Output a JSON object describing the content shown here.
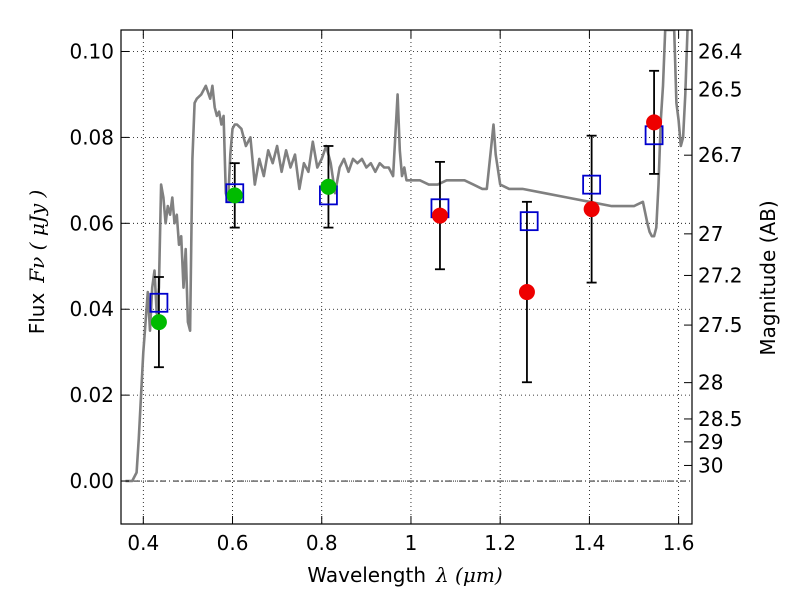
{
  "chart_data": {
    "type": "scatter",
    "title": "",
    "xlabel": "Wavelength",
    "xlabel_math": "λ (μm)",
    "ylabel": "Flux",
    "ylabel_math": "Fν ( μJy )",
    "ylabel_right": "Magnitude (AB)",
    "xlim": [
      0.35,
      1.63
    ],
    "ylim": [
      -0.01,
      0.105
    ],
    "grid": true,
    "x_ticks": [
      0.4,
      0.6,
      0.8,
      1.0,
      1.2,
      1.4,
      1.6
    ],
    "x_tick_labels": [
      "0.4",
      "0.6",
      "0.8",
      "1",
      "1.2",
      "1.4",
      "1.6"
    ],
    "y_ticks": [
      0.0,
      0.02,
      0.04,
      0.06,
      0.08,
      0.1
    ],
    "y_tick_labels": [
      "0.00",
      "0.02",
      "0.04",
      "0.06",
      "0.08",
      "0.10"
    ],
    "mag_ticks": [
      "26.4",
      "26.5",
      "26.7",
      "27",
      "27.2",
      "27.5",
      "28",
      "28.5",
      "29",
      "30"
    ],
    "series": [
      {
        "kind": "line",
        "color": "#808080",
        "x": [
          0.36,
          0.375,
          0.385,
          0.39,
          0.4,
          0.41,
          0.415,
          0.42,
          0.425,
          0.43,
          0.435,
          0.44,
          0.445,
          0.45,
          0.455,
          0.46,
          0.465,
          0.47,
          0.475,
          0.48,
          0.485,
          0.49,
          0.495,
          0.5,
          0.505,
          0.51,
          0.515,
          0.52,
          0.53,
          0.54,
          0.55,
          0.555,
          0.56,
          0.565,
          0.57,
          0.575,
          0.58,
          0.585,
          0.59,
          0.595,
          0.6,
          0.605,
          0.61,
          0.62,
          0.63,
          0.64,
          0.65,
          0.66,
          0.67,
          0.68,
          0.69,
          0.7,
          0.71,
          0.72,
          0.73,
          0.74,
          0.75,
          0.76,
          0.77,
          0.78,
          0.79,
          0.8,
          0.81,
          0.82,
          0.83,
          0.84,
          0.85,
          0.86,
          0.87,
          0.88,
          0.89,
          0.9,
          0.91,
          0.92,
          0.93,
          0.94,
          0.95,
          0.96,
          0.97,
          0.975,
          0.98,
          0.985,
          0.99,
          1.0,
          1.02,
          1.04,
          1.06,
          1.08,
          1.1,
          1.12,
          1.14,
          1.16,
          1.17,
          1.18,
          1.185,
          1.19,
          1.2,
          1.22,
          1.25,
          1.3,
          1.35,
          1.4,
          1.45,
          1.5,
          1.52,
          1.53,
          1.535,
          1.54,
          1.545,
          1.55,
          1.555,
          1.56,
          1.565,
          1.57,
          1.575,
          1.58,
          1.585,
          1.59,
          1.595,
          1.6,
          1.605,
          1.61,
          1.615,
          1.62
        ],
        "y": [
          0.0,
          0.0,
          0.002,
          0.01,
          0.03,
          0.044,
          0.035,
          0.045,
          0.049,
          0.039,
          0.045,
          0.069,
          0.066,
          0.06,
          0.064,
          0.062,
          0.066,
          0.06,
          0.062,
          0.055,
          0.057,
          0.045,
          0.054,
          0.037,
          0.035,
          0.075,
          0.088,
          0.089,
          0.09,
          0.092,
          0.089,
          0.092,
          0.087,
          0.085,
          0.086,
          0.083,
          0.085,
          0.067,
          0.065,
          0.076,
          0.082,
          0.083,
          0.083,
          0.082,
          0.078,
          0.08,
          0.069,
          0.075,
          0.071,
          0.077,
          0.074,
          0.078,
          0.072,
          0.077,
          0.073,
          0.076,
          0.068,
          0.074,
          0.072,
          0.079,
          0.073,
          0.075,
          0.078,
          0.074,
          0.067,
          0.073,
          0.075,
          0.072,
          0.075,
          0.074,
          0.075,
          0.073,
          0.074,
          0.072,
          0.074,
          0.073,
          0.073,
          0.071,
          0.09,
          0.077,
          0.071,
          0.073,
          0.07,
          0.07,
          0.07,
          0.069,
          0.069,
          0.07,
          0.07,
          0.07,
          0.069,
          0.068,
          0.068,
          0.078,
          0.083,
          0.076,
          0.069,
          0.068,
          0.068,
          0.067,
          0.066,
          0.065,
          0.064,
          0.064,
          0.065,
          0.06,
          0.058,
          0.057,
          0.057,
          0.059,
          0.069,
          0.084,
          0.092,
          0.105,
          0.105,
          0.105,
          0.105,
          0.105,
          0.088,
          0.084,
          0.078,
          0.08,
          0.09,
          0.105
        ]
      },
      {
        "kind": "markers",
        "marker": "open-square",
        "color": "#0000cc",
        "x": [
          0.435,
          0.605,
          0.815,
          1.065,
          1.265,
          1.405,
          1.545
        ],
        "y": [
          0.0415,
          0.067,
          0.0665,
          0.0635,
          0.0605,
          0.069,
          0.0805
        ]
      },
      {
        "kind": "markers",
        "marker": "filled-circle",
        "color": "#00bb00",
        "x": [
          0.435,
          0.605,
          0.815
        ],
        "y": [
          0.037,
          0.0665,
          0.0685
        ],
        "yerr": [
          0.0105,
          0.0075,
          0.0095
        ]
      },
      {
        "kind": "markers",
        "marker": "filled-circle",
        "color": "#ee0000",
        "x": [
          1.065,
          1.26,
          1.405,
          1.545
        ],
        "y": [
          0.0618,
          0.044,
          0.0633,
          0.0835
        ],
        "yerr": [
          0.0125,
          0.021,
          0.0171,
          0.012
        ]
      }
    ],
    "mag_tick_values": [
      26.4,
      26.5,
      26.7,
      27,
      27.2,
      27.5,
      28,
      28.5,
      29,
      30
    ]
  }
}
